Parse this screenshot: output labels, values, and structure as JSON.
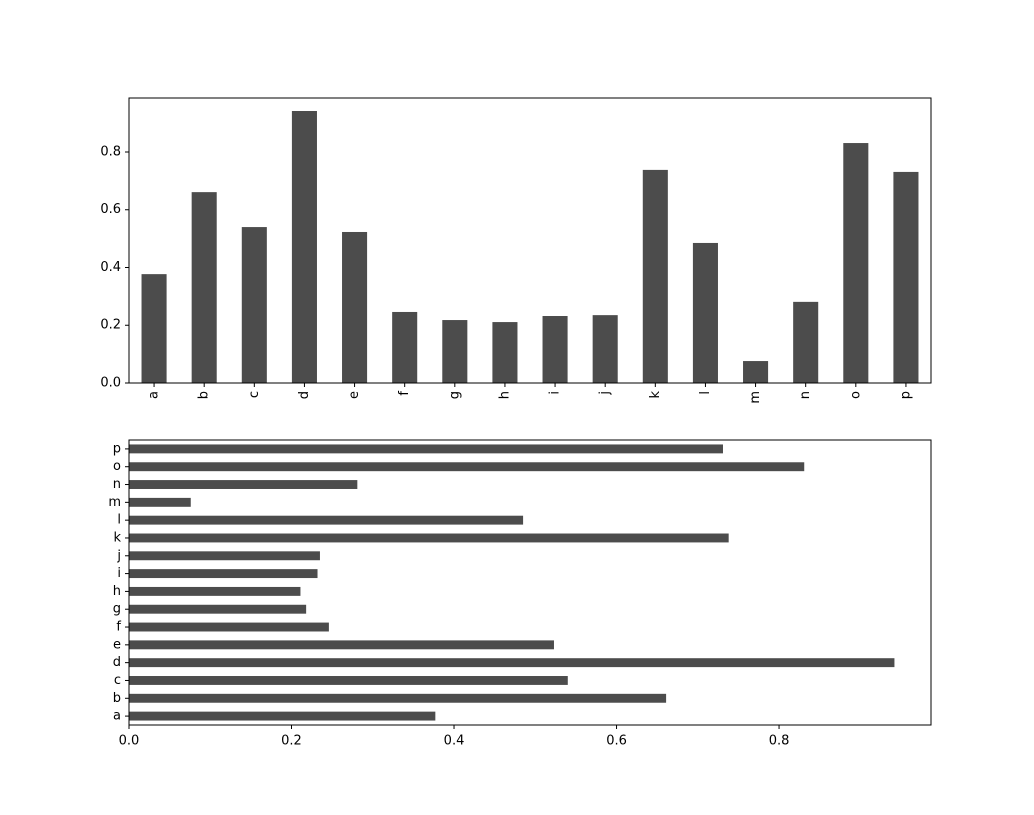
{
  "chart_data": [
    {
      "type": "bar",
      "color": "#4c4c4c",
      "categories": [
        "a",
        "b",
        "c",
        "d",
        "e",
        "f",
        "g",
        "h",
        "i",
        "j",
        "k",
        "l",
        "m",
        "n",
        "o",
        "p"
      ],
      "values": [
        0.377,
        0.661,
        0.54,
        0.942,
        0.523,
        0.246,
        0.218,
        0.211,
        0.232,
        0.235,
        0.738,
        0.485,
        0.076,
        0.281,
        0.831,
        0.731
      ],
      "ylim": [
        0,
        0.987
      ],
      "yticks": [
        {
          "value": 0,
          "label": "0.0"
        },
        0.2,
        0.4,
        0.6,
        0.8
      ]
    },
    {
      "type": "barh",
      "color": "#4c4c4c",
      "categories": [
        "a",
        "b",
        "c",
        "d",
        "e",
        "f",
        "g",
        "h",
        "i",
        "j",
        "k",
        "l",
        "m",
        "n",
        "o",
        "p"
      ],
      "values": [
        0.377,
        0.661,
        0.54,
        0.942,
        0.523,
        0.246,
        0.218,
        0.211,
        0.232,
        0.235,
        0.738,
        0.485,
        0.076,
        0.281,
        0.831,
        0.731
      ],
      "xlim": [
        0,
        0.987
      ],
      "xticks": [
        {
          "value": 0,
          "label": "0.0"
        },
        0.2,
        0.4,
        0.6,
        0.8
      ]
    }
  ]
}
